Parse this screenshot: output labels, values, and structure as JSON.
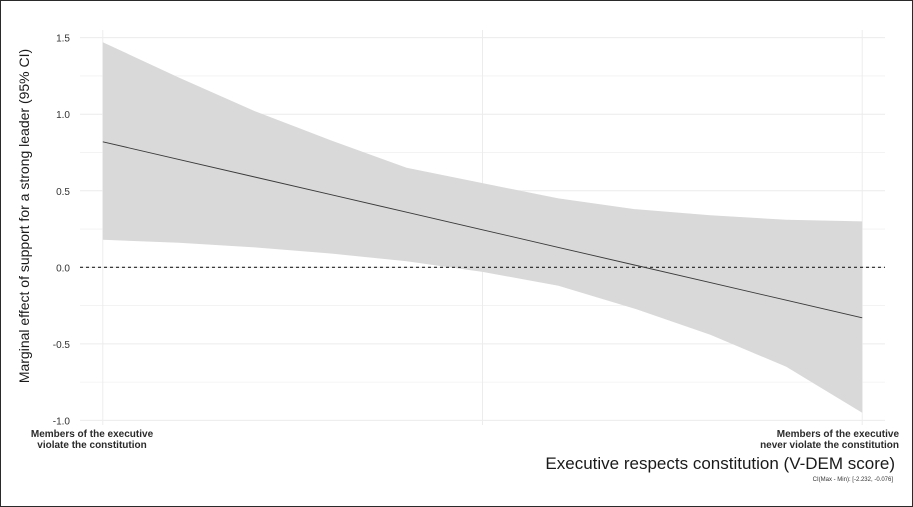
{
  "chart_data": {
    "type": "line",
    "ylabel": "Marginal effect of support for a strong leader (95% CI)",
    "xlabel": "Executive respects constitution (V-DEM score)",
    "x_tick_labels": {
      "left": [
        "Members of the executive",
        "violate the constitution"
      ],
      "right": [
        "Members of the executive",
        "never violate the constitution"
      ]
    },
    "caption": "CI(Max - Min): [-2.232, -0.076]",
    "y_ticks": [
      "-1.0",
      "-0.5",
      "0.0",
      "0.5",
      "1.0",
      "1.5"
    ],
    "y_tick_values": [
      -1.0,
      -0.5,
      0.0,
      0.5,
      1.0,
      1.5
    ],
    "ylim": [
      -1.03,
      1.55
    ],
    "xlim": [
      -0.03,
      1.03
    ],
    "reference_line": {
      "y": 0,
      "style": "dashed"
    },
    "grid": true,
    "series": [
      {
        "x": [
          0,
          0.1,
          0.2,
          0.3,
          0.4,
          0.5,
          0.6,
          0.7,
          0.8,
          0.9,
          1.0
        ],
        "estimate": [
          0.82,
          0.705,
          0.59,
          0.475,
          0.36,
          0.245,
          0.13,
          0.015,
          -0.1,
          -0.215,
          -0.33
        ],
        "lower": [
          0.18,
          0.16,
          0.13,
          0.09,
          0.04,
          -0.03,
          -0.12,
          -0.27,
          -0.44,
          -0.65,
          -0.95
        ],
        "upper": [
          1.47,
          1.24,
          1.02,
          0.83,
          0.65,
          0.55,
          0.45,
          0.38,
          0.34,
          0.31,
          0.3
        ]
      }
    ],
    "colors": {
      "band": "#d9d9d9",
      "line": "#3a3a3a",
      "zero": "#222222",
      "grid": "#ececec"
    }
  }
}
